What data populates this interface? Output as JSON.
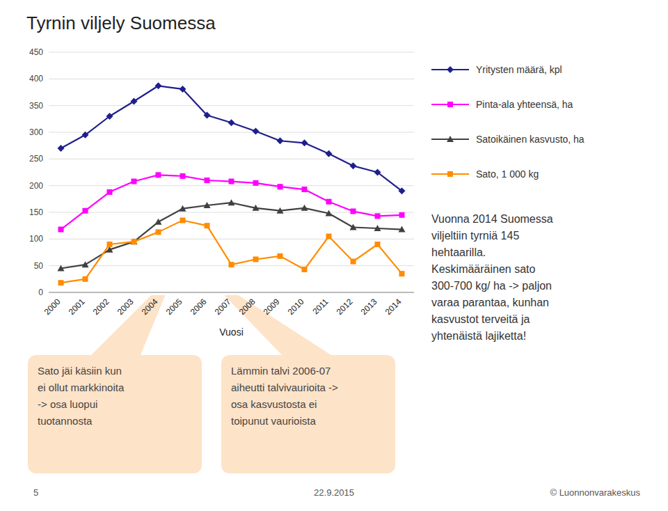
{
  "chart_data": {
    "type": "line",
    "title": "Tyrnin viljely Suomessa",
    "x_label": "Vuosi",
    "categories": [
      "2000",
      "2001",
      "2002",
      "2003",
      "2004",
      "2005",
      "2006",
      "2007",
      "2008",
      "2009",
      "2010",
      "2011",
      "2012",
      "2013",
      "2014"
    ],
    "series": [
      {
        "name": "Yritysten määrä, kpl",
        "color": "#1F1F8C",
        "marker": "diamond",
        "values": [
          270,
          295,
          330,
          358,
          387,
          381,
          332,
          318,
          302,
          284,
          280,
          260,
          237,
          225,
          190
        ]
      },
      {
        "name": "Pinta-ala yhteensä, ha",
        "color": "#FF00FF",
        "marker": "square",
        "values": [
          118,
          153,
          188,
          208,
          220,
          218,
          210,
          208,
          205,
          198,
          193,
          170,
          152,
          143,
          145
        ]
      },
      {
        "name": "Satoikäinen kasvusto, ha",
        "color": "#404040",
        "marker": "triangle",
        "values": [
          45,
          52,
          80,
          95,
          132,
          157,
          163,
          168,
          158,
          153,
          158,
          148,
          122,
          120,
          118
        ]
      },
      {
        "name": "Sato, 1 000 kg",
        "color": "#FF8C00",
        "marker": "square",
        "values": [
          18,
          25,
          90,
          95,
          113,
          135,
          125,
          52,
          62,
          68,
          43,
          105,
          58,
          90,
          35
        ]
      }
    ],
    "ylim": [
      0,
      450
    ],
    "yticks": [
      0,
      50,
      100,
      150,
      200,
      250,
      300,
      350,
      400,
      450
    ],
    "grid": true,
    "legend": "right",
    "annotations": [
      {
        "text": "Sato jäi käsiin kun\nei ollut markkinoita\n-> osa luopui\ntuotannosta",
        "x": "2004"
      },
      {
        "text": "Lämmin talvi 2006-07\naiheutti talvivaurioita ->\nosa kasvustosta ei\ntoipunut vaurioista",
        "x": "2007"
      }
    ],
    "notes": "Vuonna 2014 Suomessa\nviljeltiin tyrniä 145\nhehtaarilla.\nKeskimääräinen sato\n300-700 kg/ ha -> paljon\nvaraa parantaa, kunhan\nkasvustot terveitä ja\nyhtenäistä lajiketta!",
    "footer": [
      "5",
      "22.9.2015",
      "© Luonnonvarakeskus"
    ]
  }
}
